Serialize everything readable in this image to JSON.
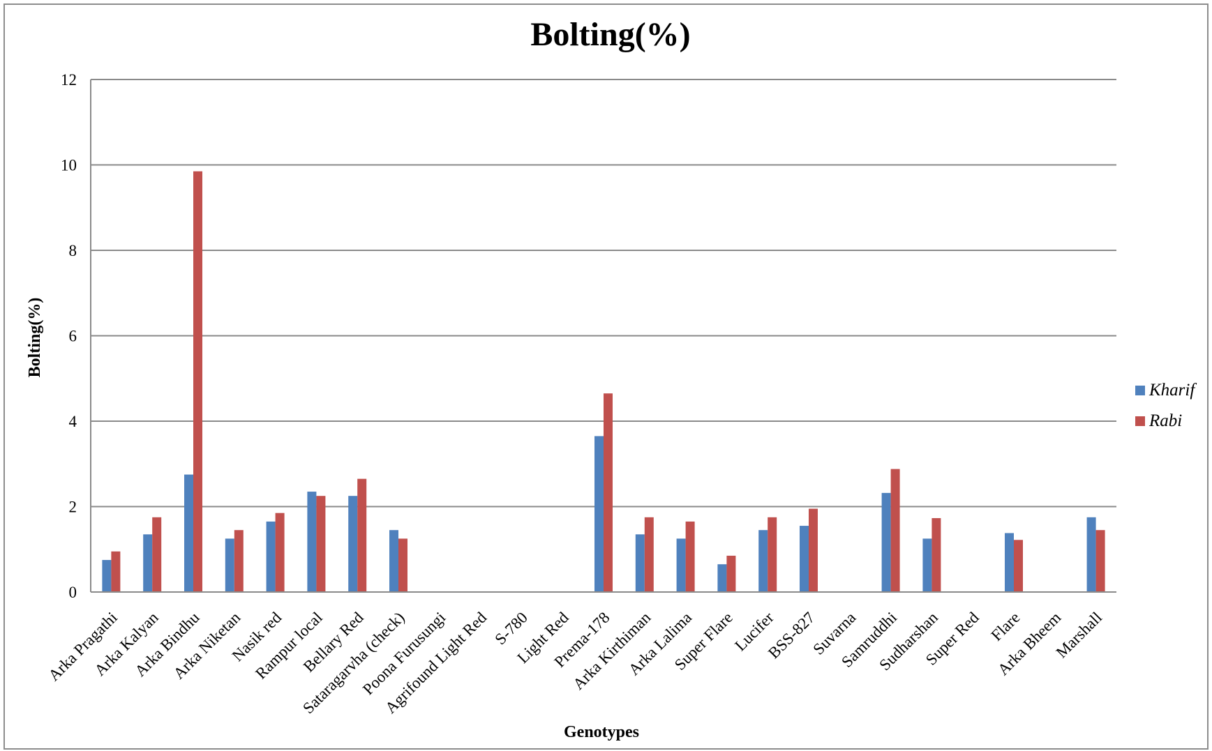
{
  "chart_data": {
    "type": "bar",
    "title": "Bolting(%)",
    "xlabel": "Genotypes",
    "ylabel": "Bolting(%)",
    "ylim": [
      0,
      12
    ],
    "yticks": [
      0,
      2,
      4,
      6,
      8,
      10,
      12
    ],
    "grid": true,
    "legend_position": "right",
    "categories": [
      "Arka Pragathi",
      "Arka Kalyan",
      "Arka Bindhu",
      "Arka Niketan",
      "Nasik red",
      "Rampur local",
      "Bellary Red",
      "Sataragarvha (check)",
      "Poona Furusungi",
      "Agrifound Light Red",
      "S-780",
      "Light Red",
      "Prema-178",
      "Arka Kirthiman",
      "Arka Lalima",
      "Super Flare",
      "Lucifer",
      "BSS-827",
      "Suvarna",
      "Samruddhi",
      "Sudharshan",
      "Super Red",
      "Flare",
      "Arka Bheem",
      "Marshall"
    ],
    "series": [
      {
        "name": "Kharif",
        "color": "#4f81bd",
        "values": [
          0.75,
          1.35,
          2.75,
          1.25,
          1.65,
          2.35,
          2.25,
          1.45,
          0,
          0,
          0,
          0,
          3.65,
          1.35,
          1.25,
          0.65,
          1.45,
          1.55,
          0,
          2.32,
          1.25,
          0,
          1.38,
          0,
          1.75
        ]
      },
      {
        "name": "Rabi",
        "color": "#c0504d",
        "values": [
          0.95,
          1.75,
          9.85,
          1.45,
          1.85,
          2.25,
          2.65,
          1.25,
          0,
          0,
          0,
          0,
          4.65,
          1.75,
          1.65,
          0.85,
          1.75,
          1.95,
          0,
          2.88,
          1.73,
          0,
          1.22,
          0,
          1.45
        ]
      }
    ]
  }
}
